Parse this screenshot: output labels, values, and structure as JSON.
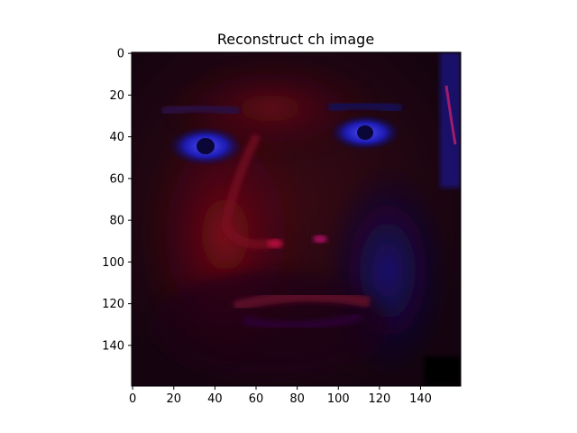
{
  "chart_data": {
    "type": "heatmap",
    "title": "Reconstruct ch image",
    "xlabel": "",
    "ylabel": "",
    "xlim": [
      0,
      159
    ],
    "ylim": [
      159,
      0
    ],
    "x_ticks": [
      0,
      20,
      40,
      60,
      80,
      100,
      120,
      140
    ],
    "y_ticks": [
      0,
      20,
      40,
      60,
      80,
      100,
      120,
      140
    ],
    "image_size": [
      160,
      160
    ],
    "colors": {
      "background": "#0b0408",
      "red_channel": "#6a0a12",
      "blue_channel": "#1a1aa8",
      "axes": "#000000"
    },
    "grid": false,
    "legend": "none"
  }
}
